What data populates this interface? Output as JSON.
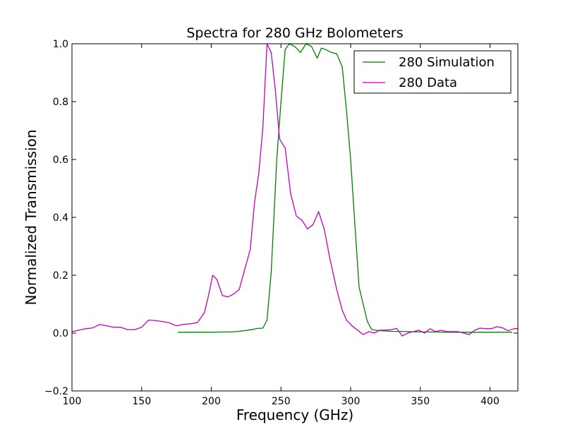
{
  "chart_data": {
    "type": "line",
    "title": "Spectra for 280 GHz Bolometers",
    "xlabel": "Frequency (GHz)",
    "ylabel": "Normalized Transmission",
    "xlim": [
      100,
      420
    ],
    "ylim": [
      -0.2,
      1.0
    ],
    "xticks": [
      100,
      150,
      200,
      250,
      300,
      350,
      400
    ],
    "xtick_labels": [
      "100",
      "150",
      "200",
      "250",
      "300",
      "350",
      "400"
    ],
    "yticks": [
      -0.2,
      0.0,
      0.2,
      0.4,
      0.6,
      0.8,
      1.0
    ],
    "ytick_labels": [
      "−0.2",
      "0.0",
      "0.2",
      "0.4",
      "0.6",
      "0.8",
      "1.0"
    ],
    "grid": false,
    "legend_position": "top-right",
    "series": [
      {
        "name": "280 Simulation",
        "color": "#008000",
        "x": [
          176,
          180,
          190,
          200,
          210,
          215,
          220,
          225,
          230,
          233,
          237,
          240,
          243,
          247,
          250,
          253,
          256,
          260,
          264,
          268,
          272,
          276,
          279,
          282,
          286,
          290,
          294,
          297,
          300,
          303,
          306,
          309,
          312,
          315,
          318,
          322,
          326,
          330,
          340,
          350,
          360,
          370,
          380,
          390,
          400,
          410,
          416
        ],
        "y": [
          0.003,
          0.003,
          0.003,
          0.003,
          0.004,
          0.004,
          0.006,
          0.009,
          0.013,
          0.016,
          0.017,
          0.045,
          0.21,
          0.6,
          0.8,
          0.98,
          1.0,
          0.99,
          0.97,
          1.0,
          0.99,
          0.95,
          0.985,
          0.98,
          0.97,
          0.965,
          0.92,
          0.77,
          0.6,
          0.38,
          0.16,
          0.1,
          0.04,
          0.013,
          0.01,
          0.008,
          0.007,
          0.006,
          0.005,
          0.004,
          0.004,
          0.003,
          0.003,
          0.003,
          0.003,
          0.003,
          0.003
        ]
      },
      {
        "name": "280 Data",
        "color": "#bf00bf",
        "x": [
          100,
          105,
          110,
          115,
          120,
          125,
          130,
          135,
          140,
          145,
          150,
          155,
          160,
          165,
          170,
          175,
          180,
          185,
          190,
          195,
          198,
          201,
          204,
          208,
          212,
          216,
          220,
          224,
          228,
          231,
          234,
          237,
          240,
          243,
          246,
          249,
          253,
          257,
          261,
          265,
          269,
          273,
          277,
          281,
          285,
          290,
          294,
          297,
          301,
          305,
          309,
          313,
          317,
          321,
          325,
          329,
          333,
          337,
          341,
          345,
          349,
          353,
          357,
          361,
          365,
          369,
          373,
          377,
          381,
          385,
          389,
          393,
          397,
          401,
          405,
          409,
          413,
          417,
          420
        ],
        "y": [
          0.005,
          0.01,
          0.015,
          0.018,
          0.03,
          0.025,
          0.02,
          0.02,
          0.012,
          0.012,
          0.02,
          0.045,
          0.043,
          0.04,
          0.035,
          0.025,
          0.03,
          0.032,
          0.036,
          0.07,
          0.13,
          0.2,
          0.185,
          0.13,
          0.125,
          0.135,
          0.15,
          0.22,
          0.29,
          0.45,
          0.55,
          0.71,
          1.0,
          0.97,
          0.84,
          0.67,
          0.64,
          0.48,
          0.405,
          0.39,
          0.36,
          0.375,
          0.42,
          0.36,
          0.26,
          0.15,
          0.08,
          0.045,
          0.025,
          0.01,
          -0.005,
          0.005,
          0.0,
          0.01,
          0.01,
          0.012,
          0.016,
          -0.01,
          0.0,
          0.005,
          0.01,
          0.0,
          0.015,
          0.005,
          0.01,
          0.005,
          0.005,
          0.005,
          0.0,
          -0.005,
          0.01,
          0.017,
          0.015,
          0.015,
          0.022,
          0.018,
          0.008,
          0.015,
          0.015
        ]
      }
    ]
  }
}
